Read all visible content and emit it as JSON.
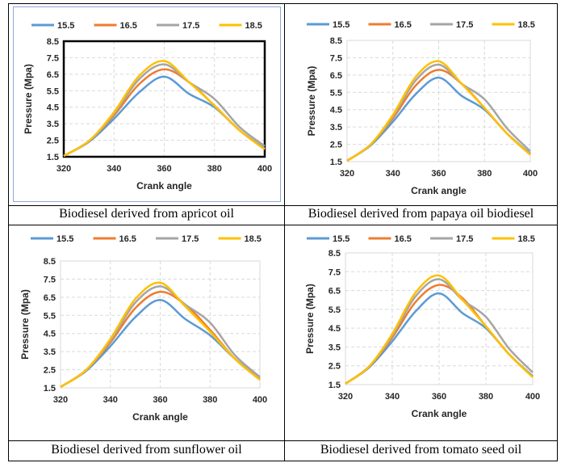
{
  "captions": [
    "Biodiesel derived from apricot oil",
    "Biodiesel derived from papaya oil biodiesel",
    "Biodiesel derived from sunflower oil",
    "Biodiesel derived from tomato seed oil"
  ],
  "chart_data": [
    {
      "type": "line",
      "title": "",
      "xlabel": "Crank angle",
      "ylabel": "Pressure (Mpa)",
      "xlim": [
        320,
        400
      ],
      "ylim": [
        1.5,
        8.5
      ],
      "xticks": [
        "320",
        "340",
        "360",
        "380",
        "400"
      ],
      "yticks": [
        "1.5",
        "2.5",
        "3.5",
        "4.5",
        "5.5",
        "6.5",
        "7.5",
        "8.5"
      ],
      "grid": true,
      "legend": "top",
      "x": [
        320,
        330,
        340,
        350,
        360,
        370,
        380,
        390,
        400
      ],
      "series": [
        {
          "name": "15.5",
          "color": "#5B9BD5",
          "values": [
            1.55,
            2.4,
            3.8,
            5.4,
            6.35,
            5.3,
            4.5,
            3.1,
            2.0
          ]
        },
        {
          "name": "16.5",
          "color": "#ED7D31",
          "values": [
            1.55,
            2.45,
            4.0,
            5.9,
            6.8,
            6.0,
            4.6,
            3.1,
            1.95
          ]
        },
        {
          "name": "17.5",
          "color": "#A5A5A5",
          "values": [
            1.55,
            2.45,
            4.1,
            6.2,
            7.1,
            6.0,
            5.0,
            3.3,
            2.15
          ]
        },
        {
          "name": "18.5",
          "color": "#FFC000",
          "values": [
            1.55,
            2.45,
            4.2,
            6.4,
            7.3,
            6.0,
            4.6,
            3.1,
            1.95
          ]
        }
      ]
    },
    {
      "type": "line",
      "title": "",
      "xlabel": "Crank angle",
      "ylabel": "Pressure (Mpa)",
      "xlim": [
        320,
        400
      ],
      "ylim": [
        1.5,
        8.5
      ],
      "xticks": [
        "320",
        "340",
        "360",
        "380",
        "400"
      ],
      "yticks": [
        "1.5",
        "2.5",
        "3.5",
        "4.5",
        "5.5",
        "6.5",
        "7.5",
        "8.5"
      ],
      "grid": true,
      "legend": "top",
      "x": [
        320,
        330,
        340,
        350,
        360,
        370,
        380,
        390,
        400
      ],
      "series": [
        {
          "name": "15.5",
          "color": "#5B9BD5",
          "values": [
            1.55,
            2.4,
            3.8,
            5.4,
            6.35,
            5.3,
            4.5,
            3.1,
            1.95
          ]
        },
        {
          "name": "16.5",
          "color": "#ED7D31",
          "values": [
            1.55,
            2.45,
            4.0,
            5.9,
            6.8,
            6.0,
            4.6,
            3.1,
            1.9
          ]
        },
        {
          "name": "17.5",
          "color": "#A5A5A5",
          "values": [
            1.55,
            2.45,
            4.1,
            6.2,
            7.1,
            6.0,
            5.1,
            3.4,
            2.1
          ]
        },
        {
          "name": "18.5",
          "color": "#FFC000",
          "values": [
            1.55,
            2.45,
            4.2,
            6.4,
            7.3,
            6.0,
            4.6,
            3.1,
            1.9
          ]
        }
      ]
    },
    {
      "type": "line",
      "title": "",
      "xlabel": "Crank angle",
      "ylabel": "Pressure (Mpa)",
      "xlim": [
        320,
        400
      ],
      "ylim": [
        1.5,
        8.5
      ],
      "xticks": [
        "320",
        "340",
        "360",
        "380",
        "400"
      ],
      "yticks": [
        "1.5",
        "2.5",
        "3.5",
        "4.5",
        "5.5",
        "6.5",
        "7.5",
        "8.5"
      ],
      "grid": true,
      "legend": "top",
      "x": [
        320,
        330,
        340,
        350,
        360,
        370,
        380,
        390,
        400
      ],
      "series": [
        {
          "name": "15.5",
          "color": "#5B9BD5",
          "values": [
            1.55,
            2.4,
            3.8,
            5.4,
            6.35,
            5.3,
            4.4,
            3.1,
            2.0
          ]
        },
        {
          "name": "16.5",
          "color": "#ED7D31",
          "values": [
            1.55,
            2.45,
            4.0,
            5.9,
            6.8,
            6.1,
            4.7,
            3.1,
            1.95
          ]
        },
        {
          "name": "17.5",
          "color": "#A5A5A5",
          "values": [
            1.55,
            2.45,
            4.1,
            6.2,
            7.1,
            6.1,
            5.1,
            3.3,
            2.1
          ]
        },
        {
          "name": "18.5",
          "color": "#FFC000",
          "values": [
            1.55,
            2.45,
            4.2,
            6.4,
            7.3,
            6.0,
            4.6,
            3.1,
            1.95
          ]
        }
      ]
    },
    {
      "type": "line",
      "title": "",
      "xlabel": "Crank angle",
      "ylabel": "Pressure (Mpa)",
      "xlim": [
        320,
        400
      ],
      "ylim": [
        1.5,
        8.5
      ],
      "xticks": [
        "320",
        "340",
        "360",
        "380",
        "400"
      ],
      "yticks": [
        "1.5",
        "2.5",
        "3.5",
        "4.5",
        "5.5",
        "6.5",
        "7.5",
        "8.5"
      ],
      "grid": true,
      "legend": "top",
      "x": [
        320,
        330,
        340,
        350,
        360,
        370,
        380,
        390,
        400
      ],
      "series": [
        {
          "name": "15.5",
          "color": "#5B9BD5",
          "values": [
            1.55,
            2.4,
            3.8,
            5.4,
            6.35,
            5.3,
            4.5,
            3.1,
            1.95
          ]
        },
        {
          "name": "16.5",
          "color": "#ED7D31",
          "values": [
            1.55,
            2.45,
            4.0,
            5.9,
            6.8,
            6.1,
            4.6,
            3.1,
            1.9
          ]
        },
        {
          "name": "17.5",
          "color": "#A5A5A5",
          "values": [
            1.55,
            2.45,
            4.1,
            6.2,
            7.1,
            6.0,
            5.1,
            3.4,
            2.15
          ]
        },
        {
          "name": "18.5",
          "color": "#FFC000",
          "values": [
            1.55,
            2.45,
            4.2,
            6.4,
            7.3,
            6.0,
            4.6,
            3.1,
            1.9
          ]
        }
      ]
    }
  ]
}
